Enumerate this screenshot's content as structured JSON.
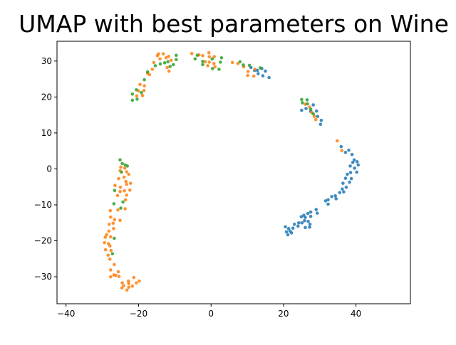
{
  "chart_data": {
    "type": "scatter",
    "title": "UMAP with best parameters on Wine",
    "xlabel": "",
    "ylabel": "",
    "xlim": [
      -42.5,
      55
    ],
    "ylim": [
      -37.5,
      35.5
    ],
    "xticks": [
      -40,
      -20,
      0,
      20,
      40
    ],
    "yticks": [
      -30,
      -20,
      -10,
      0,
      10,
      20,
      30
    ],
    "grid": false,
    "legend": false,
    "series": [
      {
        "color": "#1f77b4",
        "points": [
          [
            11,
            28.2
          ],
          [
            12,
            27.4
          ],
          [
            13,
            26.5
          ],
          [
            14,
            27.9
          ],
          [
            15,
            27.2
          ],
          [
            16,
            25.4
          ],
          [
            14.3,
            25.9
          ],
          [
            12.8,
            27.4
          ],
          [
            25,
            16.3
          ],
          [
            26.2,
            16.8
          ],
          [
            27.5,
            16
          ],
          [
            28.2,
            17.8
          ],
          [
            29.1,
            16.1
          ],
          [
            29.4,
            14.6
          ],
          [
            30.4,
            13.5
          ],
          [
            30.2,
            12.4
          ],
          [
            35.9,
            6.2
          ],
          [
            37.1,
            4.6
          ],
          [
            38,
            5.2
          ],
          [
            38.9,
            4
          ],
          [
            39.5,
            2.5
          ],
          [
            40.3,
            2
          ],
          [
            40.6,
            1.1
          ],
          [
            39.1,
            1.8
          ],
          [
            38.4,
            0.8
          ],
          [
            39.6,
            0.2
          ],
          [
            40.2,
            -0.9
          ],
          [
            38.5,
            -1
          ],
          [
            37.6,
            -1.5
          ],
          [
            37.1,
            -2.6
          ],
          [
            38.7,
            -2.7
          ],
          [
            38.2,
            -3.7
          ],
          [
            36.4,
            -4
          ],
          [
            37.3,
            -5.1
          ],
          [
            36.2,
            -5.6
          ],
          [
            36.6,
            -6.4
          ],
          [
            35.5,
            -6.6
          ],
          [
            34.3,
            -7.5
          ],
          [
            34.5,
            -8.3
          ],
          [
            33.3,
            -7.7
          ],
          [
            32.3,
            -8.6
          ],
          [
            31.6,
            -8.9
          ],
          [
            32.3,
            -9.8
          ],
          [
            29,
            -11.3
          ],
          [
            29.3,
            -12.3
          ],
          [
            27.5,
            -12
          ],
          [
            26.7,
            -12.4
          ],
          [
            25.6,
            -12.9
          ],
          [
            24.9,
            -13.3
          ],
          [
            26,
            -13.5
          ],
          [
            25.8,
            -14.4
          ],
          [
            27.5,
            -13.2
          ],
          [
            26.8,
            -14.6
          ],
          [
            25.1,
            -15
          ],
          [
            24.2,
            -15
          ],
          [
            24,
            -15.9
          ],
          [
            23,
            -15.4
          ],
          [
            27.3,
            -15.4
          ],
          [
            27.2,
            -16.2
          ],
          [
            26,
            -16.3
          ],
          [
            22.6,
            -16.5
          ],
          [
            21.4,
            -16.6
          ],
          [
            21.8,
            -17.3
          ],
          [
            20.5,
            -16.1
          ],
          [
            20.8,
            -17.5
          ],
          [
            22.2,
            -17.8
          ],
          [
            21.2,
            -18.3
          ]
        ]
      },
      {
        "color": "#ff7f0e",
        "points": [
          [
            -14.5,
            32
          ],
          [
            -13.2,
            32
          ],
          [
            -11.7,
            31.3
          ],
          [
            -11,
            30.2
          ],
          [
            -14.8,
            31.5
          ],
          [
            -15.8,
            29.6
          ],
          [
            -14.1,
            30.6
          ],
          [
            -12.4,
            30.9
          ],
          [
            -12.1,
            28.2
          ],
          [
            -11.6,
            27.2
          ],
          [
            -16.2,
            27.7
          ],
          [
            -17,
            26.2
          ],
          [
            -17.5,
            26.6
          ],
          [
            -5.3,
            32.1
          ],
          [
            -3.3,
            31.7
          ],
          [
            -2.3,
            31.5
          ],
          [
            -0.6,
            32.3
          ],
          [
            -0.5,
            31.2
          ],
          [
            0.9,
            31.2
          ],
          [
            -0.5,
            29.7
          ],
          [
            -0.9,
            28.7
          ],
          [
            -1.6,
            29.8
          ],
          [
            0.8,
            29.3
          ],
          [
            1.1,
            28.4
          ],
          [
            5.9,
            29.6
          ],
          [
            7.4,
            29.3
          ],
          [
            9,
            28.4
          ],
          [
            10.2,
            27.1
          ],
          [
            10.1,
            26
          ],
          [
            11.8,
            25.8
          ],
          [
            12.1,
            27.7
          ],
          [
            -19.6,
            23.5
          ],
          [
            -18.4,
            23.1
          ],
          [
            -18.5,
            21.8
          ],
          [
            -20,
            21.7
          ],
          [
            -18.9,
            20.4
          ],
          [
            -20.5,
            20.3
          ],
          [
            26,
            18
          ],
          [
            27.2,
            17.2
          ],
          [
            27.8,
            15.7
          ],
          [
            28.5,
            14.6
          ],
          [
            28.9,
            13.7
          ],
          [
            34.8,
            7.8
          ],
          [
            36.1,
            5.1
          ],
          [
            -24.9,
            0.5
          ],
          [
            -23.8,
            0.2
          ],
          [
            -25.1,
            -0.5
          ],
          [
            -23.3,
            -0.8
          ],
          [
            -22.7,
            -1.5
          ],
          [
            -24,
            -2.3
          ],
          [
            -25.5,
            -2.7
          ],
          [
            -23.5,
            -3.5
          ],
          [
            -22.2,
            -4
          ],
          [
            -23.3,
            -4.3
          ],
          [
            -26.5,
            -4.6
          ],
          [
            -25,
            -5.1
          ],
          [
            -22.4,
            -5.9
          ],
          [
            -25.1,
            -6.3
          ],
          [
            -23.9,
            -6.1
          ],
          [
            -23.3,
            -7.3
          ],
          [
            -25.8,
            -7.4
          ],
          [
            -23.6,
            -8.6
          ],
          [
            -23.7,
            -11.1
          ],
          [
            -25.7,
            -11.4
          ],
          [
            -27.8,
            -11.6
          ],
          [
            -27.7,
            -13.4
          ],
          [
            -26.6,
            -14.1
          ],
          [
            -25.1,
            -14.3
          ],
          [
            -27,
            -15.1
          ],
          [
            -28.1,
            -15.4
          ],
          [
            -26.9,
            -16.6
          ],
          [
            -28.2,
            -17.3
          ],
          [
            -28.8,
            -18.3
          ],
          [
            -27.7,
            -18.9
          ],
          [
            -29.2,
            -19
          ],
          [
            -29.4,
            -20.5
          ],
          [
            -28.3,
            -20.8
          ],
          [
            -27.9,
            -21.4
          ],
          [
            -29.1,
            -22.5
          ],
          [
            -27.6,
            -22.7
          ],
          [
            -28.4,
            -24
          ],
          [
            -27.9,
            -25.1
          ],
          [
            -26.7,
            -26.6
          ],
          [
            -27.7,
            -28.1
          ],
          [
            -25.6,
            -28.6
          ],
          [
            -26.8,
            -29.5
          ],
          [
            -27.7,
            -30
          ],
          [
            -25.4,
            -29.9
          ],
          [
            -26.3,
            -29.6
          ],
          [
            -24.5,
            -31.7
          ],
          [
            -22.8,
            -31.2
          ],
          [
            -22.7,
            -31.9
          ],
          [
            -24.1,
            -32.5
          ],
          [
            -21.7,
            -32.6
          ],
          [
            -24.6,
            -33.1
          ],
          [
            -23.2,
            -33.7
          ],
          [
            -22.7,
            -32.9
          ],
          [
            -20.6,
            -31.7
          ],
          [
            -21.3,
            -30.2
          ],
          [
            -19.8,
            -31.2
          ]
        ]
      },
      {
        "color": "#2ca02c",
        "points": [
          [
            -9.6,
            31.6
          ],
          [
            -9.6,
            30.4
          ],
          [
            -14,
            29.2
          ],
          [
            -12.8,
            29.5
          ],
          [
            -11.9,
            29.8
          ],
          [
            -11.3,
            28.5
          ],
          [
            -10.4,
            29
          ],
          [
            -15.4,
            28.7
          ],
          [
            -17.5,
            27
          ],
          [
            -18.4,
            24.8
          ],
          [
            -20.6,
            22
          ],
          [
            -21.7,
            20.8
          ],
          [
            -21.7,
            19.1
          ],
          [
            -20.4,
            19.4
          ],
          [
            -19.2,
            21.2
          ],
          [
            -4.4,
            30.6
          ],
          [
            -2.3,
            29.9
          ],
          [
            -3.8,
            31.6
          ],
          [
            0.3,
            30.6
          ],
          [
            2.9,
            30.9
          ],
          [
            2.6,
            29.7
          ],
          [
            -2.3,
            29
          ],
          [
            0.4,
            27.9
          ],
          [
            2.2,
            27.7
          ],
          [
            8,
            29.8
          ],
          [
            8.9,
            28.9
          ],
          [
            10.6,
            28.8
          ],
          [
            13.6,
            28.1
          ],
          [
            25,
            19.3
          ],
          [
            26.5,
            19.2
          ],
          [
            25.2,
            18.4
          ],
          [
            26.6,
            18.1
          ],
          [
            27.5,
            16.6
          ],
          [
            28.2,
            15.3
          ],
          [
            -25.1,
            2.5
          ],
          [
            -24.5,
            1.5
          ],
          [
            -23.7,
            1.1
          ],
          [
            -23.1,
            0.8
          ],
          [
            -24.7,
            -0.9
          ],
          [
            -26.6,
            -6
          ],
          [
            -24.3,
            -9.2
          ],
          [
            -26.8,
            -9.7
          ],
          [
            -24.9,
            -10.9
          ],
          [
            -26.7,
            -19.3
          ],
          [
            -27.2,
            -23.6
          ]
        ]
      }
    ]
  }
}
